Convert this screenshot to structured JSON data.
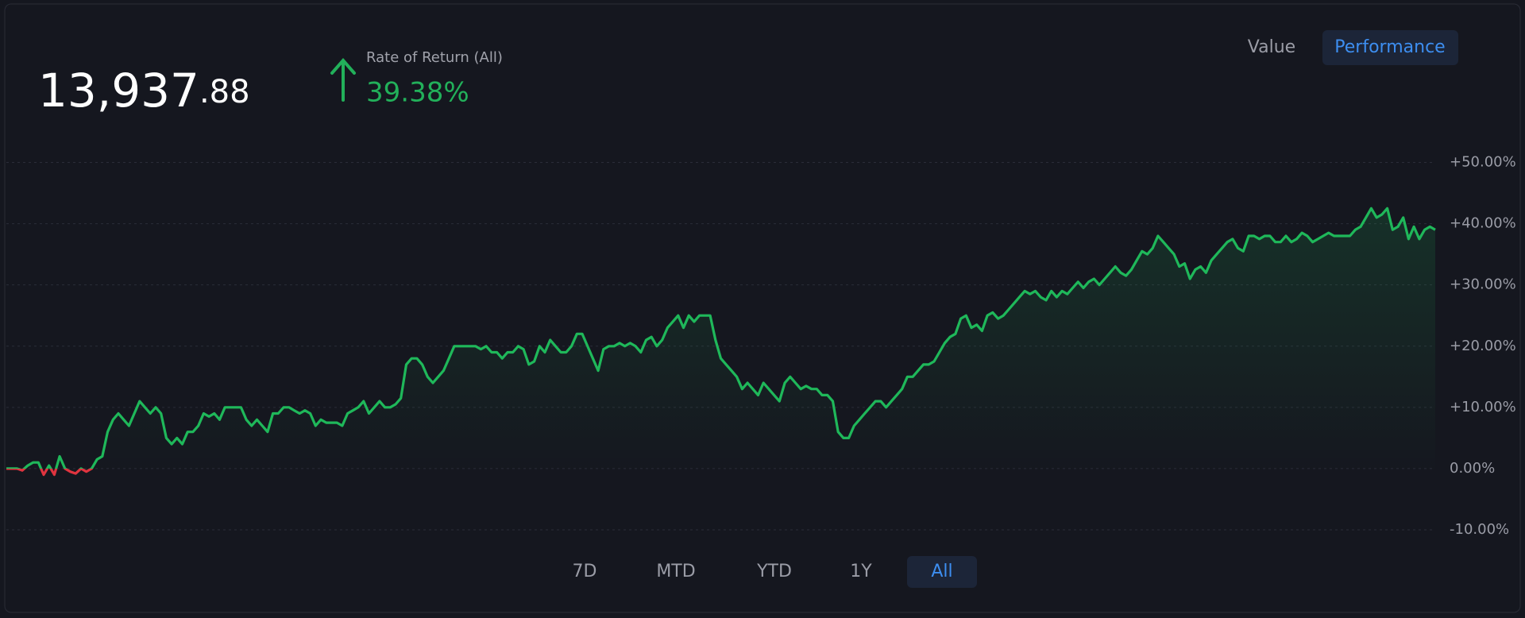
{
  "header": {
    "value_whole": "13,937",
    "value_fraction": ".88",
    "return_label": "Rate of Return (All)",
    "return_value": "39.38%"
  },
  "view_toggle": [
    "Value",
    "Performance"
  ],
  "range_buttons": [
    "7D",
    "MTD",
    "YTD",
    "1Y",
    "All"
  ],
  "chart_data": {
    "type": "line",
    "color": "#1fb85a",
    "negative_color": "#e0343f",
    "grid": true,
    "ylim": [
      -10,
      50
    ],
    "yticks": [
      {
        "value": 50,
        "label": "+50.00%"
      },
      {
        "value": 40,
        "label": "+40.00%"
      },
      {
        "value": 30,
        "label": "+30.00%"
      },
      {
        "value": 20,
        "label": "+20.00%"
      },
      {
        "value": 10,
        "label": "+10.00%"
      },
      {
        "value": 0,
        "label": "0.00%"
      },
      {
        "value": -10,
        "label": "-10.00%"
      }
    ],
    "values": [
      0,
      0,
      0,
      -0.3,
      0.5,
      1,
      1,
      -1,
      0.5,
      -1,
      2,
      0,
      -0.5,
      -0.8,
      0,
      -0.5,
      0,
      1.5,
      2,
      6,
      8,
      9,
      8,
      7,
      9,
      11,
      10,
      9,
      10,
      9,
      5,
      4,
      5,
      4,
      6,
      6,
      7,
      9,
      8.5,
      9,
      8,
      10,
      10,
      10,
      10,
      8,
      7,
      8,
      7,
      6,
      9,
      9,
      10,
      10,
      9.5,
      9,
      9.5,
      9,
      7,
      8,
      7.5,
      7.5,
      7.5,
      7,
      9,
      9.5,
      10,
      11,
      9,
      10,
      11,
      10,
      10,
      10.5,
      11.5,
      17,
      18,
      18,
      17,
      15,
      14,
      15,
      16,
      18,
      20,
      20,
      20,
      20,
      20,
      19.5,
      20,
      19,
      19,
      18,
      19,
      19,
      20,
      19.5,
      17,
      17.5,
      20,
      19,
      21,
      20,
      19,
      19,
      20,
      22,
      22,
      20,
      18,
      16,
      19.5,
      20,
      20,
      20.5,
      20,
      20.5,
      20,
      19,
      21,
      21.5,
      20,
      21,
      23,
      24,
      25,
      23,
      25,
      24,
      25,
      25,
      25,
      21,
      18,
      17,
      16,
      15,
      13,
      14,
      13,
      12,
      14,
      13,
      12,
      11,
      14,
      15,
      14,
      13,
      13.5,
      13,
      13,
      12,
      12,
      11,
      6,
      5,
      5,
      7,
      8,
      9,
      10,
      11,
      11,
      10,
      11,
      12,
      13,
      15,
      15,
      16,
      17,
      17,
      17.5,
      19,
      20.5,
      21.5,
      22,
      24.5,
      25,
      23,
      23.5,
      22.5,
      25,
      25.5,
      24.5,
      25,
      26,
      27,
      28,
      29,
      28.5,
      29,
      28,
      27.5,
      29,
      28,
      29,
      28.5,
      29.5,
      30.5,
      29.5,
      30.5,
      31,
      30,
      31,
      32,
      33,
      32,
      31.5,
      32.5,
      34,
      35.5,
      35,
      36,
      38,
      37,
      36,
      35,
      33,
      33.5,
      31,
      32.5,
      33,
      32,
      34,
      35,
      36,
      37,
      37.5,
      36,
      35.5,
      38,
      38,
      37.5,
      38,
      38,
      37,
      37,
      38,
      37,
      37.5,
      38.5,
      38,
      37,
      37.5,
      38,
      38.5,
      38,
      38,
      38,
      38,
      39,
      39.5,
      41,
      42.5,
      41,
      41.5,
      42.5,
      39,
      39.5,
      41,
      37.5,
      39.5,
      37.5,
      39,
      39.5,
      39
    ]
  }
}
